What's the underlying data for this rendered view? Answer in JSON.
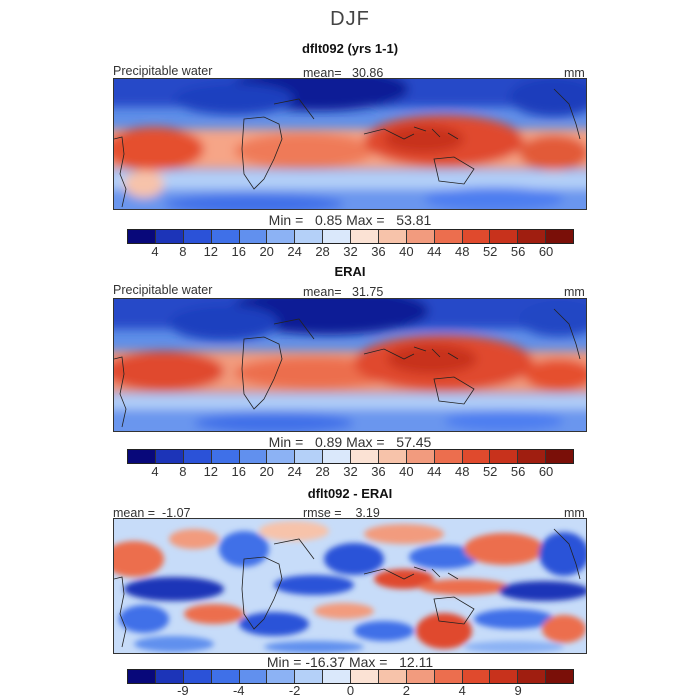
{
  "figure_title": "DJF",
  "chart_data": [
    {
      "type": "heatmap",
      "title": "dflt092 (yrs 1-1)",
      "variable_label": "Precipitable water",
      "mean_label": "mean=",
      "mean_value": "30.86",
      "units": "mm",
      "min_label": "Min =",
      "min_value": "0.85",
      "max_label": "Max =",
      "max_value": "53.81",
      "colorbar_ticks": [
        "4",
        "8",
        "12",
        "16",
        "20",
        "24",
        "28",
        "32",
        "36",
        "40",
        "44",
        "48",
        "52",
        "56",
        "60"
      ],
      "colorbar_colors": [
        "#08087a",
        "#1c34b8",
        "#2b52d8",
        "#3f70e8",
        "#6190ee",
        "#8cb2f4",
        "#b4d0f8",
        "#dae8fb",
        "#fbe2d4",
        "#f7c3aa",
        "#f29b7e",
        "#ec6e4e",
        "#e04a2d",
        "#c8321c",
        "#a01e10",
        "#7a0f08"
      ]
    },
    {
      "type": "heatmap",
      "title": "ERAI",
      "variable_label": "Precipitable water",
      "mean_label": "mean=",
      "mean_value": "31.75",
      "units": "mm",
      "min_label": "Min =",
      "min_value": "0.89",
      "max_label": "Max =",
      "max_value": "57.45",
      "colorbar_ticks": [
        "4",
        "8",
        "12",
        "16",
        "20",
        "24",
        "28",
        "32",
        "36",
        "40",
        "44",
        "48",
        "52",
        "56",
        "60"
      ],
      "colorbar_colors": [
        "#08087a",
        "#1c34b8",
        "#2b52d8",
        "#3f70e8",
        "#6190ee",
        "#8cb2f4",
        "#b4d0f8",
        "#dae8fb",
        "#fbe2d4",
        "#f7c3aa",
        "#f29b7e",
        "#ec6e4e",
        "#e04a2d",
        "#c8321c",
        "#a01e10",
        "#7a0f08"
      ]
    },
    {
      "type": "heatmap",
      "title": "dflt092 - ERAI",
      "mean_label": "mean =",
      "mean_value": "-1.07",
      "rmse_label": "rmse =",
      "rmse_value": "3.19",
      "units": "mm",
      "min_label": "Min =",
      "min_value": "-16.37",
      "max_label": "Max =",
      "max_value": "12.11",
      "colorbar_ticks": [
        "-9",
        "-4",
        "-2",
        "0",
        "2",
        "4",
        "9"
      ],
      "colorbar_colors": [
        "#08087a",
        "#1c34b8",
        "#2b52d8",
        "#3f70e8",
        "#6190ee",
        "#8cb2f4",
        "#b4d0f8",
        "#dae8fb",
        "#fbe2d4",
        "#f7c3aa",
        "#f29b7e",
        "#ec6e4e",
        "#e04a2d",
        "#c8321c",
        "#a01e10",
        "#7a0f08"
      ]
    }
  ]
}
